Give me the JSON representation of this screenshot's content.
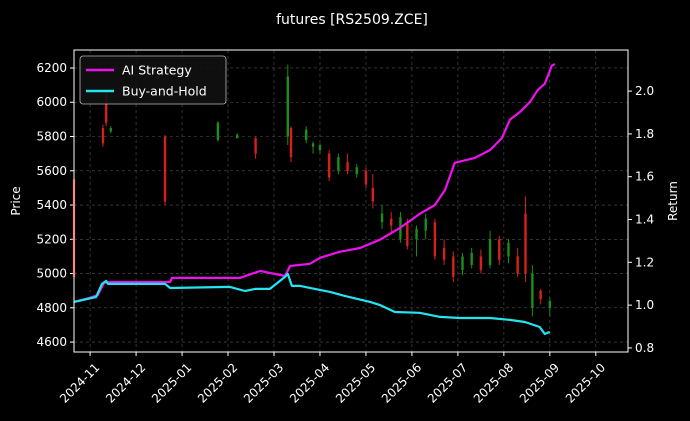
{
  "chart_data": {
    "type": "candlestick",
    "title": "futures [RS2509.ZCE]",
    "ylabel": "Price",
    "y2label": "Return",
    "xlim": [
      -0.35,
      11.7
    ],
    "xticks": [
      {
        "value": 0,
        "label": "2024-11"
      },
      {
        "value": 1,
        "label": "2024-12"
      },
      {
        "value": 2,
        "label": "2025-01"
      },
      {
        "value": 3,
        "label": "2025-02"
      },
      {
        "value": 4,
        "label": "2025-03"
      },
      {
        "value": 5,
        "label": "2025-04"
      },
      {
        "value": 6,
        "label": "2025-05"
      },
      {
        "value": 7,
        "label": "2025-06"
      },
      {
        "value": 8,
        "label": "2025-07"
      },
      {
        "value": 9,
        "label": "2025-08"
      },
      {
        "value": 10,
        "label": "2025-09"
      },
      {
        "value": 11,
        "label": "2025-10"
      }
    ],
    "ylim": [
      4542,
      6305
    ],
    "yticks": [
      4600,
      4800,
      5000,
      5200,
      5400,
      5600,
      5800,
      6000,
      6200
    ],
    "y2lim": [
      0.781,
      2.192
    ],
    "y2ticks": [
      0.8,
      {
        "value": 1,
        "label": "1.0"
      },
      1.2,
      1.4,
      1.6,
      1.8,
      {
        "value": 2,
        "label": "2.0"
      }
    ],
    "grid": true,
    "legend": "upper left",
    "candles": {
      "up_color": "#1a8f1a",
      "down_color": "#d62020",
      "x": [
        -0.35,
        0.28,
        0.35,
        0.45,
        1.63,
        2.78,
        3.2,
        3.6,
        4.3,
        4.37,
        4.7,
        4.85,
        5.0,
        5.2,
        5.4,
        5.6,
        5.8,
        6.0,
        6.15,
        6.35,
        6.55,
        6.75,
        6.9,
        7.1,
        7.3,
        7.5,
        7.7,
        7.9,
        8.1,
        8.3,
        8.5,
        8.7,
        8.9,
        9.1,
        9.3,
        9.47,
        9.62,
        9.8,
        10.0
      ],
      "open": [
        5550,
        5850,
        6050,
        5830,
        5800,
        5780,
        5790,
        5790,
        5800,
        5850,
        5780,
        5740,
        5720,
        5700,
        5600,
        5650,
        5580,
        5600,
        5500,
        5300,
        5320,
        5200,
        5300,
        5200,
        5250,
        5300,
        5150,
        5100,
        5020,
        5050,
        5100,
        5050,
        5200,
        5100,
        5100,
        5350,
        4800,
        4900,
        4800
      ],
      "high": [
        5580,
        5870,
        6060,
        5860,
        5810,
        5890,
        5820,
        5800,
        6220,
        5860,
        5860,
        5770,
        5760,
        5720,
        5700,
        5700,
        5640,
        5620,
        5580,
        5400,
        5360,
        5360,
        5320,
        5280,
        5350,
        5320,
        5200,
        5130,
        5120,
        5150,
        5140,
        5250,
        5220,
        5200,
        5150,
        5450,
        5050,
        4910,
        4860
      ],
      "low": [
        4950,
        5740,
        5860,
        5820,
        5400,
        5770,
        5790,
        5670,
        5750,
        5650,
        5760,
        5700,
        5700,
        5540,
        5580,
        5580,
        5560,
        5500,
        5380,
        5260,
        5240,
        5180,
        5140,
        5100,
        5200,
        5080,
        5050,
        4950,
        4990,
        5030,
        5000,
        5030,
        5050,
        5060,
        4980,
        4950,
        4750,
        4820,
        4750
      ],
      "close": [
        4980,
        5760,
        5880,
        5850,
        5420,
        5880,
        5810,
        5700,
        6150,
        5680,
        5840,
        5760,
        5750,
        5560,
        5680,
        5600,
        5620,
        5520,
        5420,
        5350,
        5280,
        5330,
        5160,
        5260,
        5320,
        5100,
        5080,
        4980,
        5100,
        5120,
        5020,
        5200,
        5080,
        5180,
        5000,
        5000,
        5000,
        4850,
        4840
      ]
    },
    "series": [
      {
        "name": "AI Strategy",
        "type": "line",
        "axis": "y2",
        "color": "#ee11ee",
        "x": [
          -0.35,
          0,
          0.17,
          0.3,
          0.43,
          1.74,
          1.78,
          3.26,
          3.7,
          4.24,
          4.35,
          4.78,
          5.0,
          5.43,
          5.87,
          6.3,
          6.74,
          7.17,
          7.5,
          7.72,
          7.93,
          8.37,
          8.7,
          8.96,
          9.13,
          9.35,
          9.57,
          9.74,
          9.89,
          10.04,
          10.11
        ],
        "values": [
          1.015,
          1.034,
          1.048,
          1.104,
          1.108,
          1.108,
          1.127,
          1.127,
          1.16,
          1.136,
          1.183,
          1.193,
          1.221,
          1.249,
          1.267,
          1.305,
          1.361,
          1.426,
          1.468,
          1.538,
          1.665,
          1.688,
          1.725,
          1.781,
          1.866,
          1.903,
          1.95,
          2.006,
          2.034,
          2.118,
          2.127
        ]
      },
      {
        "name": "Buy-and-Hold",
        "type": "line",
        "axis": "y2",
        "color": "#22e5f0",
        "x": [
          -0.35,
          0.13,
          0.26,
          0.35,
          0.39,
          1.63,
          1.74,
          3.04,
          3.37,
          3.59,
          3.91,
          4.24,
          4.3,
          4.39,
          4.57,
          4.89,
          5.22,
          5.54,
          6.09,
          6.3,
          6.63,
          7.17,
          7.61,
          8.04,
          8.7,
          9.13,
          9.46,
          9.78,
          9.89,
          10.0
        ],
        "values": [
          1.015,
          1.038,
          1.099,
          1.113,
          1.099,
          1.099,
          1.08,
          1.085,
          1.066,
          1.076,
          1.076,
          1.132,
          1.146,
          1.09,
          1.09,
          1.076,
          1.062,
          1.043,
          1.015,
          1.001,
          0.968,
          0.964,
          0.945,
          0.94,
          0.94,
          0.931,
          0.921,
          0.898,
          0.865,
          0.875
        ]
      }
    ]
  }
}
